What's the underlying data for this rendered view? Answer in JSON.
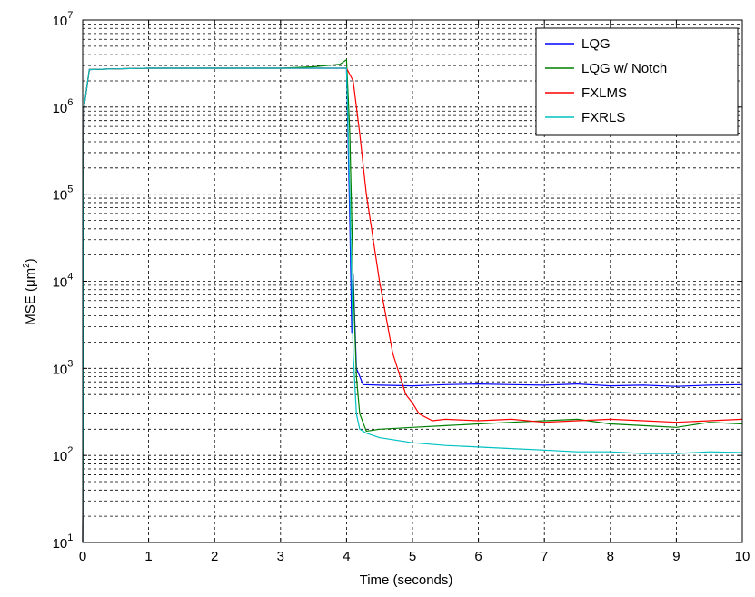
{
  "chart_data": {
    "type": "line",
    "xlabel": "Time (seconds)",
    "ylabel": "MSE (μm",
    "ylabel_sup": "2",
    "ylabel_close": ")",
    "xlim": [
      0,
      10
    ],
    "ylim": [
      10,
      10000000
    ],
    "yscale": "log",
    "grid": true,
    "legend_position": "top-right",
    "x_ticks": [
      "0",
      "1",
      "2",
      "3",
      "4",
      "5",
      "6",
      "7",
      "8",
      "9",
      "10"
    ],
    "y_ticks": [
      {
        "base": "10",
        "exp": "1"
      },
      {
        "base": "10",
        "exp": "2"
      },
      {
        "base": "10",
        "exp": "3"
      },
      {
        "base": "10",
        "exp": "4"
      },
      {
        "base": "10",
        "exp": "5"
      },
      {
        "base": "10",
        "exp": "6"
      },
      {
        "base": "10",
        "exp": "7"
      }
    ],
    "series": [
      {
        "name": "LQG",
        "color": "#0000ff",
        "x": [
          0,
          0.02,
          0.1,
          0.5,
          1,
          2,
          3,
          3.5,
          4.0,
          4.05,
          4.08,
          4.1,
          4.15,
          4.25,
          4.5,
          5.0,
          5.5,
          6.0,
          6.5,
          7.0,
          7.5,
          8.0,
          8.5,
          9.0,
          9.5,
          10.0
        ],
        "y": [
          10,
          1000000,
          2700000,
          2750000,
          2800000,
          2800000,
          2800000,
          2800000,
          2800000,
          50000,
          2500,
          12000,
          1000,
          650,
          640,
          630,
          650,
          660,
          650,
          640,
          660,
          630,
          640,
          620,
          640,
          650
        ]
      },
      {
        "name": "LQG w/ Notch",
        "color": "#008000",
        "x": [
          0,
          0.02,
          0.1,
          0.5,
          1,
          2,
          3,
          3.5,
          3.9,
          4.0,
          4.05,
          4.1,
          4.15,
          4.2,
          4.3,
          4.5,
          5.0,
          5.5,
          6.0,
          6.5,
          7.0,
          7.5,
          8.0,
          8.5,
          9.0,
          9.5,
          10.0
        ],
        "y": [
          10,
          1000000,
          2700000,
          2750000,
          2800000,
          2800000,
          2800000,
          2900000,
          3100000,
          3500000,
          500000,
          10000,
          800,
          300,
          190,
          200,
          210,
          220,
          230,
          240,
          250,
          260,
          230,
          220,
          210,
          240,
          230
        ]
      },
      {
        "name": "FXLMS",
        "color": "#ff0000",
        "x": [
          0,
          0.02,
          0.1,
          0.5,
          1,
          2,
          3,
          3.5,
          4.0,
          4.1,
          4.2,
          4.3,
          4.5,
          4.7,
          4.9,
          5.0,
          5.1,
          5.3,
          5.5,
          6.0,
          6.5,
          7.0,
          7.5,
          8.0,
          8.5,
          9.0,
          9.5,
          10.0
        ],
        "y": [
          10,
          1000000,
          2700000,
          2750000,
          2800000,
          2800000,
          2800000,
          2800000,
          2800000,
          2000000,
          500000,
          100000,
          10000,
          1500,
          500,
          400,
          300,
          250,
          260,
          250,
          260,
          240,
          250,
          260,
          250,
          240,
          250,
          260
        ]
      },
      {
        "name": "FXRLS",
        "color": "#00c0c0",
        "x": [
          0,
          0.02,
          0.1,
          0.5,
          1,
          2,
          3,
          3.5,
          4.0,
          4.05,
          4.1,
          4.15,
          4.2,
          4.3,
          4.5,
          5.0,
          5.5,
          6.0,
          6.5,
          7.0,
          7.5,
          8.0,
          8.5,
          9.0,
          9.5,
          10.0
        ],
        "y": [
          10,
          1000000,
          2700000,
          2750000,
          2800000,
          2800000,
          2800000,
          2800000,
          2800000,
          100000,
          1500,
          300,
          200,
          180,
          160,
          140,
          130,
          125,
          120,
          115,
          110,
          110,
          105,
          105,
          110,
          108
        ]
      }
    ]
  }
}
